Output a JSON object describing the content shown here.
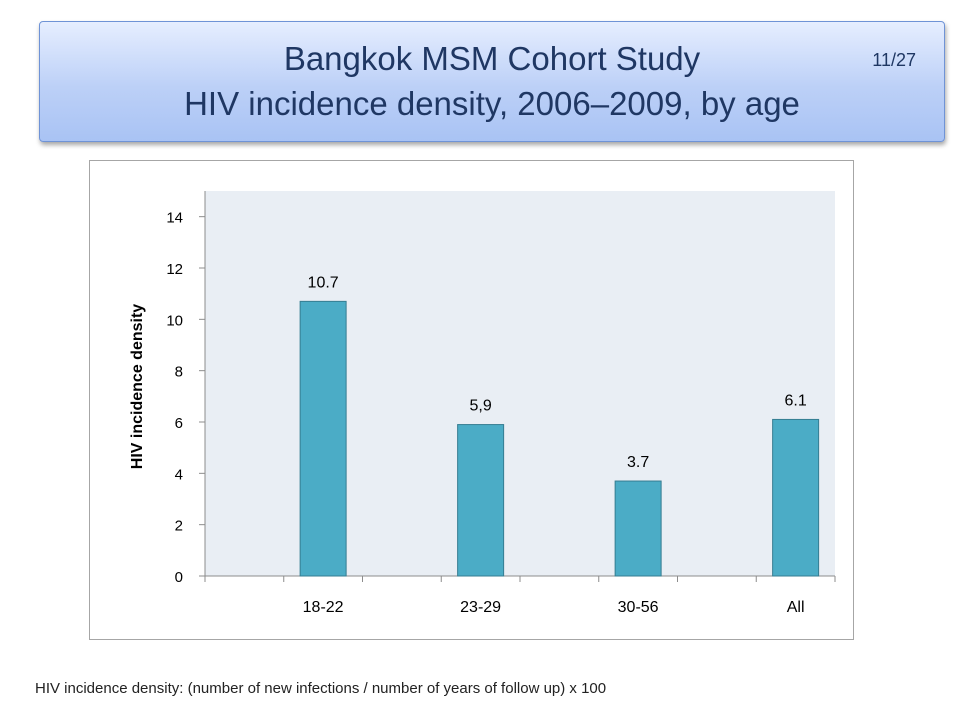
{
  "slide": {
    "title_line1": "Bangkok MSM Cohort Study",
    "title_line2": "HIV incidence density, 2006–2009,  by age",
    "page_number": "11/27",
    "footnote": "HIV incidence density: (number of new infections / number of years of follow up) x 100"
  },
  "chart_data": {
    "type": "bar",
    "categories": [
      "18-22",
      "23-29",
      "30-56",
      "All"
    ],
    "values": [
      10.7,
      5.9,
      3.7,
      6.1
    ],
    "data_labels": [
      "10.7",
      "5,9",
      "3.7",
      "6.1"
    ],
    "ylabel": "HIV incidence density",
    "xlabel": "",
    "ylim": [
      0,
      15
    ],
    "yticks": [
      0,
      2,
      4,
      6,
      8,
      10,
      12,
      14
    ],
    "bar_color": "#4bacc6",
    "bar_border_color": "#357d91",
    "plot_background": "#e9eef4",
    "grid": false
  }
}
